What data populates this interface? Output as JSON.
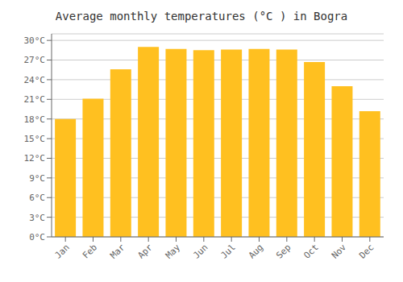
{
  "chart_data": {
    "type": "bar",
    "title": "Average monthly temperatures (°C ) in Bogra",
    "categories": [
      "Jan",
      "Feb",
      "Mar",
      "Apr",
      "May",
      "Jun",
      "Jul",
      "Aug",
      "Sep",
      "Oct",
      "Nov",
      "Dec"
    ],
    "values": [
      18.0,
      21.1,
      25.6,
      29.0,
      28.7,
      28.5,
      28.6,
      28.7,
      28.6,
      26.7,
      23.0,
      19.2
    ],
    "color": "#FFC020",
    "ylim": [
      0,
      31
    ],
    "yticks": [
      {
        "value": 0,
        "label": "0°C"
      },
      {
        "value": 3,
        "label": "3°C"
      },
      {
        "value": 6,
        "label": "6°C"
      },
      {
        "value": 9,
        "label": "9°C"
      },
      {
        "value": 12,
        "label": "12°C"
      },
      {
        "value": 15,
        "label": "15°C"
      },
      {
        "value": 18,
        "label": "18°C"
      },
      {
        "value": 21,
        "label": "21°C"
      },
      {
        "value": 24,
        "label": "24°C"
      },
      {
        "value": 27,
        "label": "27°C"
      },
      {
        "value": 30,
        "label": "30°C"
      }
    ],
    "grid": true
  }
}
